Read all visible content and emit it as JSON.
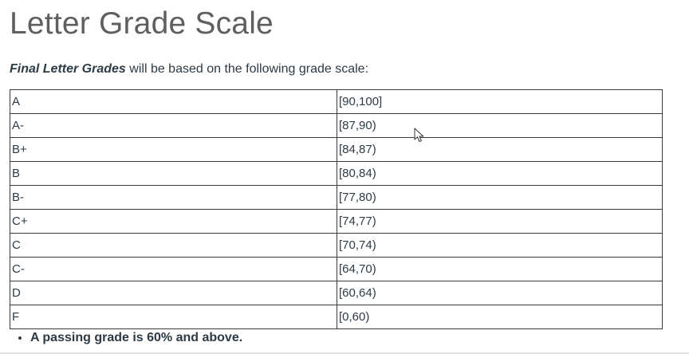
{
  "page": {
    "title": "Letter Grade Scale",
    "intro_emphasis": "Final Letter Grades",
    "intro_rest": " will be based on the following grade scale:"
  },
  "grade_scale": [
    {
      "letter": "A",
      "range": "[90,100]"
    },
    {
      "letter": "A-",
      "range": "[87,90)"
    },
    {
      "letter": "B+",
      "range": "[84,87)"
    },
    {
      "letter": "B",
      "range": "[80,84)"
    },
    {
      "letter": "B-",
      "range": "[77,80)"
    },
    {
      "letter": "C+",
      "range": "[74,77)"
    },
    {
      "letter": "C",
      "range": "[70,74)"
    },
    {
      "letter": "C-",
      "range": "[64,70)"
    },
    {
      "letter": "D",
      "range": "[60,64)"
    },
    {
      "letter": "F",
      "range": "[0,60)"
    }
  ],
  "notes": [
    "A passing grade is 60% and above."
  ],
  "icons": {
    "cursor": "mouse-pointer-icon"
  }
}
